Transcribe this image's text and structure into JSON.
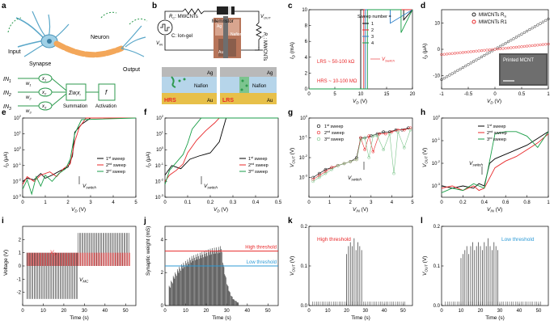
{
  "panels": [
    {
      "letter": "a"
    },
    {
      "letter": "b"
    },
    {
      "letter": "c"
    },
    {
      "letter": "d"
    },
    {
      "letter": "e"
    },
    {
      "letter": "f"
    },
    {
      "letter": "g"
    },
    {
      "letter": "h"
    },
    {
      "letter": "i"
    },
    {
      "letter": "j"
    },
    {
      "letter": "k"
    },
    {
      "letter": "l"
    }
  ],
  "a": {
    "neuron": "Neuron",
    "input": "Input",
    "synapse": "Synapse",
    "output": "Output",
    "in_labels": [
      "IN",
      "IN",
      "IN"
    ],
    "in_subs": [
      "1",
      "2",
      "3"
    ],
    "x_labels": [
      "x",
      "x",
      "x"
    ],
    "x_subs": [
      "1",
      "2",
      "3"
    ],
    "w_labels": [
      "w",
      "w",
      "w"
    ],
    "w_subs": [
      "1",
      "2",
      "3"
    ],
    "sum_symbol": "Σw",
    "sum_sub": "i",
    "sum_x": "x",
    "sum_xsub": "i",
    "f_symbol": "f",
    "summation": "Summation",
    "activation": "Activation"
  },
  "b": {
    "r_label": "R",
    "r_sub": "C",
    "r_text": ": MWCNTs",
    "c_label": "C: Ion-gel",
    "vin": "V",
    "vin_sub": "IN",
    "memristor": "Memristor",
    "vout": "V",
    "vout_sub": "OUT",
    "rl": "R",
    "rl_sub": "L",
    "rl_text": ": MWCNTs",
    "photo_ag": "Ag",
    "photo_nafion": "Nafion",
    "photo_au": "Au",
    "hrs": "HRS",
    "lrs": "LRS",
    "ag": "Ag",
    "nafion": "Nafion",
    "au": "Au"
  },
  "c_note": {
    "lrs": "LRS ~ 50-100 kΩ",
    "hrs": "HRS ~ 10-100 MΩ",
    "vswitch": "V",
    "vswitch_sub": "Switch"
  },
  "d_note": {
    "inset": "Printed MCNT",
    "legend": [
      {
        "label": "MWCNTs R",
        "sub": "S"
      },
      {
        "label": "MWCNTs R1",
        "sub": ""
      }
    ]
  },
  "chart_data": [
    {
      "panel": "c",
      "type": "line",
      "title": "",
      "xlabel": "V",
      "xlabel_sub": "D",
      "xlabel_unit": " (V)",
      "ylabel": "I",
      "ylabel_sub": "D",
      "ylabel_unit": " (mA)",
      "xlim": [
        0,
        20
      ],
      "ylim": [
        0,
        10
      ],
      "xticks": [
        0,
        5,
        10,
        15,
        20
      ],
      "yticks": [
        0,
        2,
        4,
        6,
        8,
        10
      ],
      "legend_title": "Sweep number =",
      "series": [
        {
          "name": "1",
          "color": "#000000",
          "x": [
            0,
            10.0,
            10.0,
            11.6,
            11.6,
            18.3,
            18.3,
            20
          ],
          "y": [
            0,
            0,
            10,
            10,
            10,
            10,
            8.7,
            10
          ]
        },
        {
          "name": "2",
          "color": "#e8282a",
          "x": [
            0,
            10.6,
            10.6,
            20
          ],
          "y": [
            0,
            0,
            10,
            10
          ]
        },
        {
          "name": "3",
          "color": "#2c7fc8",
          "x": [
            0,
            10.9,
            10.9,
            15.7,
            15.7,
            20
          ],
          "y": [
            0,
            0,
            10,
            10,
            8.3,
            10
          ]
        },
        {
          "name": "4",
          "color": "#1a9e48",
          "x": [
            0,
            11.3,
            11.3,
            17.8,
            17.8,
            20
          ],
          "y": [
            0,
            0,
            10,
            10,
            7.1,
            10
          ]
        }
      ]
    },
    {
      "panel": "d",
      "type": "scatter",
      "xlabel": "V",
      "xlabel_sub": "D",
      "xlabel_unit": " (V)",
      "ylabel": "I",
      "ylabel_sub": "D",
      "ylabel_unit": " (μA)",
      "xlim": [
        -1,
        1
      ],
      "ylim": [
        -15,
        15
      ],
      "xticks": [
        -1,
        -0.5,
        0,
        0.5,
        1
      ],
      "yticks": [
        -10,
        0,
        10
      ],
      "series": [
        {
          "name": "MWCNTs Rs",
          "color": "#222222",
          "slope": 11.5
        },
        {
          "name": "MWCNTs R1",
          "color": "#e8282a",
          "slope": 2.0
        }
      ]
    },
    {
      "panel": "e",
      "type": "line",
      "xlabel": "V",
      "xlabel_sub": "D",
      "xlabel_unit": " (V)",
      "ylabel": "I",
      "ylabel_sub": "D",
      "ylabel_unit": " (μA)",
      "xlim": [
        0,
        5
      ],
      "ylim_log": [
        -3,
        2
      ],
      "xticks": [
        0,
        1,
        2,
        3,
        4,
        5
      ],
      "yticks_log": [
        -3,
        -2,
        -1,
        0,
        1,
        2
      ],
      "annotation": "V",
      "annotation_sub": "switch",
      "series": [
        {
          "name": "1st sweep",
          "color": "#000000",
          "x": [
            0,
            0.2,
            0.5,
            0.8,
            1.0,
            1.3,
            1.7,
            2.0,
            2.2,
            2.3,
            2.6,
            3.0,
            5
          ],
          "logy": [
            -2.0,
            -1.8,
            -1.9,
            -1.5,
            -1.8,
            -1.6,
            -1.3,
            -1.1,
            -0.4,
            1.1,
            1.6,
            2.0,
            2.0
          ]
        },
        {
          "name": "2nd sweep",
          "color": "#e8282a",
          "x": [
            0,
            0.2,
            0.5,
            0.8,
            1.2,
            1.5,
            1.8,
            2.1,
            2.3,
            2.5,
            2.8,
            5
          ],
          "logy": [
            -2.2,
            -1.7,
            -2.0,
            -1.6,
            -1.4,
            -1.7,
            -1.2,
            -0.9,
            0.5,
            1.4,
            2.0,
            2.0
          ]
        },
        {
          "name": "3rd sweep",
          "color": "#1a9e48",
          "x": [
            0,
            0.2,
            0.4,
            0.6,
            0.8,
            1.0,
            1.3,
            1.6,
            1.9,
            2.1,
            2.3,
            2.6,
            5
          ],
          "logy": [
            -2.5,
            -1.9,
            -2.8,
            -1.7,
            -2.3,
            -1.6,
            -2.0,
            -1.5,
            -1.2,
            -0.6,
            1.0,
            1.9,
            2.0
          ]
        }
      ]
    },
    {
      "panel": "f",
      "type": "line",
      "xlabel": "V",
      "xlabel_sub": "D",
      "xlabel_unit": " (V)",
      "ylabel": "I",
      "ylabel_sub": "D",
      "ylabel_unit": " (μA)",
      "xlim": [
        0,
        0.5
      ],
      "ylim_log": [
        -3,
        2
      ],
      "xticks": [
        0,
        0.1,
        0.2,
        0.3,
        0.4,
        0.5
      ],
      "yticks_log": [
        -3,
        -2,
        -1,
        0,
        1,
        2
      ],
      "annotation": "V",
      "annotation_sub": "switch",
      "series": [
        {
          "name": "1st sweep",
          "color": "#000000",
          "x": [
            0,
            0.03,
            0.07,
            0.11,
            0.15,
            0.2,
            0.24,
            0.27,
            0.5
          ],
          "logy": [
            -1.6,
            -1.0,
            -1.2,
            -0.6,
            -0.4,
            -0.2,
            0.5,
            2.0,
            2.0
          ]
        },
        {
          "name": "2nd sweep",
          "color": "#e8282a",
          "x": [
            0,
            0.02,
            0.05,
            0.08,
            0.1,
            0.14,
            0.18,
            0.22,
            0.24,
            0.5
          ],
          "logy": [
            -2.0,
            -1.6,
            -1.3,
            -0.9,
            -0.2,
            0.6,
            1.2,
            1.7,
            2.0,
            2.0
          ]
        },
        {
          "name": "3rd sweep",
          "color": "#1a9e48",
          "x": [
            0,
            0.02,
            0.05,
            0.08,
            0.1,
            0.12,
            0.16,
            0.5
          ],
          "logy": [
            -2.2,
            -1.3,
            -0.8,
            -0.3,
            0.4,
            1.3,
            2.0,
            2.0
          ]
        }
      ]
    },
    {
      "panel": "g",
      "type": "scatter",
      "xlabel": "V",
      "xlabel_sub": "IN",
      "xlabel_unit": " (V)",
      "ylabel": "V",
      "ylabel_sub": "OUT",
      "ylabel_unit": " (V)",
      "xlim": [
        0,
        5
      ],
      "ylim_log": [
        -4,
        0
      ],
      "xticks": [
        0,
        1,
        2,
        3,
        4,
        5
      ],
      "yticks_log": [
        -3,
        -2,
        -1,
        0
      ],
      "annotation": "V",
      "annotation_sub": "switch",
      "series": [
        {
          "name": "1st sweep",
          "color": "#000000",
          "x": [
            0.2,
            0.5,
            0.8,
            1.1,
            1.4,
            1.7,
            2.0,
            2.3,
            2.5,
            2.7,
            3.0,
            3.3,
            3.6,
            3.9,
            4.2,
            4.5,
            4.8
          ],
          "logy": [
            -3.0,
            -2.8,
            -2.6,
            -2.5,
            -2.4,
            -2.3,
            -2.2,
            -2.0,
            -1.0,
            -1.0,
            -0.9,
            -0.8,
            -0.7,
            -0.7,
            -0.6,
            -0.6,
            -0.5
          ]
        },
        {
          "name": "2nd sweep",
          "color": "#e8282a",
          "x": [
            0.2,
            0.5,
            0.8,
            1.1,
            1.4,
            1.7,
            2.0,
            2.3,
            2.5,
            2.7,
            2.9,
            3.1,
            3.4,
            3.7,
            4.0,
            4.3,
            4.6,
            4.9
          ],
          "logy": [
            -3.1,
            -2.9,
            -2.7,
            -2.5,
            -2.4,
            -2.3,
            -2.2,
            -2.1,
            -1.0,
            -1.6,
            -0.9,
            -1.7,
            -0.8,
            -0.8,
            -0.7,
            -0.6,
            -0.6,
            -0.5
          ]
        },
        {
          "name": "3rd sweep",
          "color": "#7ac48a",
          "x": [
            0.2,
            0.5,
            0.8,
            1.1,
            1.4,
            1.7,
            2.0,
            2.3,
            2.5,
            2.7,
            2.9,
            3.1,
            3.3,
            3.6,
            3.9,
            4.1,
            4.3,
            4.6,
            4.9
          ],
          "logy": [
            -3.2,
            -3.0,
            -2.8,
            -2.6,
            -2.4,
            -2.3,
            -2.2,
            -2.1,
            -1.1,
            -1.0,
            -2.0,
            -0.9,
            -0.9,
            -1.6,
            -0.8,
            -2.8,
            -0.7,
            -1.5,
            -0.6
          ]
        }
      ]
    },
    {
      "panel": "h",
      "type": "line",
      "xlabel": "V",
      "xlabel_sub": "IN",
      "xlabel_unit": " (V)",
      "ylabel": "V",
      "ylabel_sub": "OUT",
      "ylabel_unit": " (V)",
      "xlim": [
        0,
        1.0
      ],
      "ylim_log": [
        -3.5,
        0
      ],
      "xticks": [
        0,
        0.2,
        0.4,
        0.6,
        0.8,
        1.0
      ],
      "yticks_log": [
        -3,
        -2,
        -1,
        0
      ],
      "annotation": "V",
      "annotation_sub": "switch",
      "series": [
        {
          "name": "1st sweep",
          "color": "#000000",
          "x": [
            0.0,
            0.1,
            0.2,
            0.3,
            0.35,
            0.4,
            0.45,
            0.5,
            0.6,
            0.7,
            0.8,
            0.9,
            1.0
          ],
          "logy": [
            -3.0,
            -3.1,
            -3.0,
            -3.1,
            -2.9,
            -3.0,
            -2.0,
            -1.8,
            -1.6,
            -1.4,
            -1.2,
            -0.9,
            -0.6
          ]
        },
        {
          "name": "2nd sweep",
          "color": "#e8282a",
          "x": [
            0.0,
            0.1,
            0.2,
            0.3,
            0.35,
            0.4,
            0.5,
            0.6,
            0.7,
            0.8,
            0.9,
            1.0
          ],
          "logy": [
            -3.1,
            -3.0,
            -3.2,
            -3.0,
            -3.2,
            -3.1,
            -2.2,
            -1.9,
            -1.7,
            -1.4,
            -1.1,
            -0.7
          ]
        },
        {
          "name": "3rd sweep",
          "color": "#1a9e48",
          "x": [
            0.0,
            0.1,
            0.2,
            0.3,
            0.35,
            0.4,
            0.5,
            0.6,
            0.7,
            0.8,
            0.9,
            1.0
          ],
          "logy": [
            -3.3,
            -3.1,
            -3.2,
            -2.9,
            -3.0,
            -3.1,
            -0.7,
            -0.6,
            -0.6,
            -0.8,
            -1.3,
            -0.6
          ]
        }
      ]
    },
    {
      "panel": "i",
      "type": "line",
      "xlabel": "Time (s)",
      "ylabel": "Voltage (V)",
      "xlim": [
        0,
        55
      ],
      "ylim": [
        -3,
        3
      ],
      "xticks": [
        0,
        10,
        20,
        30,
        40,
        50
      ],
      "yticks": [
        -2,
        -1,
        0,
        1,
        2
      ],
      "vd_label": "V",
      "vd_sub": "D",
      "vmc_label": "V",
      "vmc_sub": "MC",
      "series": [
        {
          "name": "VD",
          "color": "#e8282a",
          "pulse_start": 2,
          "pulse_end": 52,
          "pulse_period": 0.6,
          "high": 1.0,
          "low": 0.0
        },
        {
          "name": "VMC",
          "color": "#222222",
          "segments": [
            {
              "t0": 2,
              "t1": 27,
              "low": -2.5,
              "high": 1.0
            },
            {
              "t0": 27,
              "t1": 52,
              "low": 0,
              "high": 2.5
            }
          ]
        }
      ]
    },
    {
      "panel": "j",
      "type": "bar",
      "xlabel": "Time (s)",
      "ylabel": "Synaptic weight (mS)",
      "xlim": [
        0,
        55
      ],
      "ylim": [
        0,
        4.8
      ],
      "xticks": [
        0,
        10,
        20,
        30,
        40,
        50
      ],
      "yticks": [
        0,
        2,
        4
      ],
      "thresholds": [
        {
          "name": "High threshold",
          "value": 3.3,
          "color": "#e8282a"
        },
        {
          "name": "Low threshold",
          "value": 2.4,
          "color": "#2c9ad6"
        }
      ],
      "x": [
        2,
        3,
        4,
        5,
        6,
        7,
        8,
        9,
        10,
        11,
        12,
        13,
        14,
        15,
        16,
        17,
        18,
        19,
        20,
        21,
        22,
        23,
        24,
        25,
        26,
        27,
        28,
        29,
        30,
        31,
        32,
        33,
        34,
        35
      ],
      "values": [
        1.2,
        1.5,
        1.8,
        2.0,
        2.2,
        2.35,
        2.5,
        2.6,
        2.7,
        2.8,
        2.9,
        3.0,
        3.05,
        3.1,
        3.15,
        3.2,
        3.25,
        3.3,
        3.35,
        3.4,
        3.45,
        3.48,
        3.5,
        3.52,
        3.55,
        3.6,
        2.6,
        1.9,
        1.3,
        0.9,
        0.6,
        0.4,
        0.3,
        0.2
      ]
    },
    {
      "panel": "k",
      "type": "bar",
      "xlabel": "Time (s)",
      "ylabel": "V",
      "ylabel_sub": "OUT",
      "ylabel_unit": " (V)",
      "xlim": [
        0,
        55
      ],
      "ylim": [
        0,
        0.2
      ],
      "xticks": [
        0,
        10,
        20,
        30,
        40,
        50
      ],
      "yticks": [
        0.0,
        0.1,
        0.2
      ],
      "label": "High threshold",
      "label_color": "#e8282a",
      "x": [
        20,
        21,
        22,
        23,
        24,
        25,
        26,
        27,
        28
      ],
      "values": [
        0.13,
        0.15,
        0.16,
        0.15,
        0.17,
        0.14,
        0.16,
        0.15,
        0.14
      ],
      "baseline": 0.01
    },
    {
      "panel": "l",
      "type": "bar",
      "xlabel": "Time (s)",
      "ylabel": "V",
      "ylabel_sub": "OUT",
      "ylabel_unit": " (V)",
      "xlim": [
        0,
        55
      ],
      "ylim": [
        0,
        0.2
      ],
      "xticks": [
        0,
        10,
        20,
        30,
        40,
        50
      ],
      "yticks": [
        0.0,
        0.1,
        0.2
      ],
      "label": "Low threshold",
      "label_color": "#2c9ad6",
      "x": [
        10,
        11,
        12,
        13,
        14,
        15,
        16,
        17,
        18,
        19,
        20,
        21,
        22,
        23,
        24,
        25,
        26,
        27,
        28,
        29
      ],
      "values": [
        0.12,
        0.13,
        0.14,
        0.15,
        0.13,
        0.15,
        0.16,
        0.14,
        0.15,
        0.16,
        0.15,
        0.14,
        0.16,
        0.15,
        0.17,
        0.15,
        0.14,
        0.16,
        0.15,
        0.14
      ],
      "baseline": 0.01
    }
  ]
}
